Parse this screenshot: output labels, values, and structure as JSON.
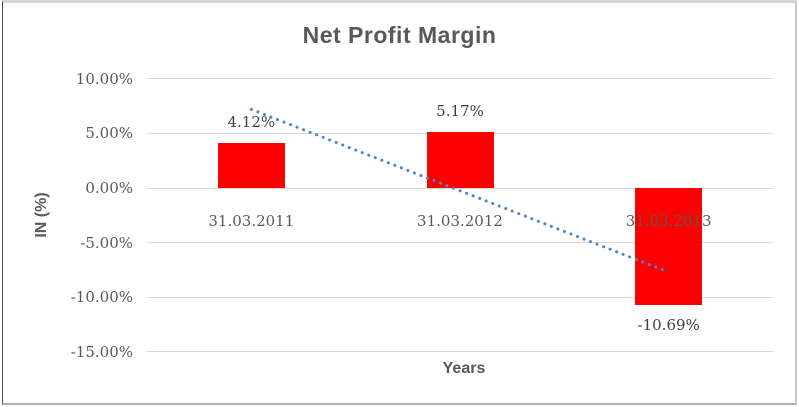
{
  "colors": {
    "bar": "#ff0000",
    "trendline": "#4a86c8",
    "grid": "#d9d9d9",
    "title_text": "#595959",
    "axis_text": "#595959",
    "data_label_text": "#404040"
  },
  "chart_data": {
    "type": "bar",
    "title": "Net Profit Margin",
    "xlabel": "Years",
    "ylabel": "IN (%)",
    "categories": [
      "31.03.2011",
      "31.03.2012",
      "31.03.2013"
    ],
    "series": [
      {
        "name": "Net Profit Margin",
        "values": [
          4.12,
          5.17,
          -10.69
        ]
      }
    ],
    "data_labels": [
      "4.12%",
      "5.17%",
      "-10.69%"
    ],
    "ylim": [
      -15,
      10
    ],
    "yticks": [
      {
        "value": 10,
        "label": "10.00%"
      },
      {
        "value": 5,
        "label": "5.00%"
      },
      {
        "value": 0,
        "label": "0.00%"
      },
      {
        "value": -5,
        "label": "-5.00%"
      },
      {
        "value": -10,
        "label": "-10.00%"
      },
      {
        "value": -15,
        "label": "-15.00%"
      }
    ],
    "grid": true,
    "legend": "none",
    "trendline": {
      "type": "linear",
      "style": "dotted",
      "start_value": 7.2,
      "end_value": -7.7
    }
  }
}
